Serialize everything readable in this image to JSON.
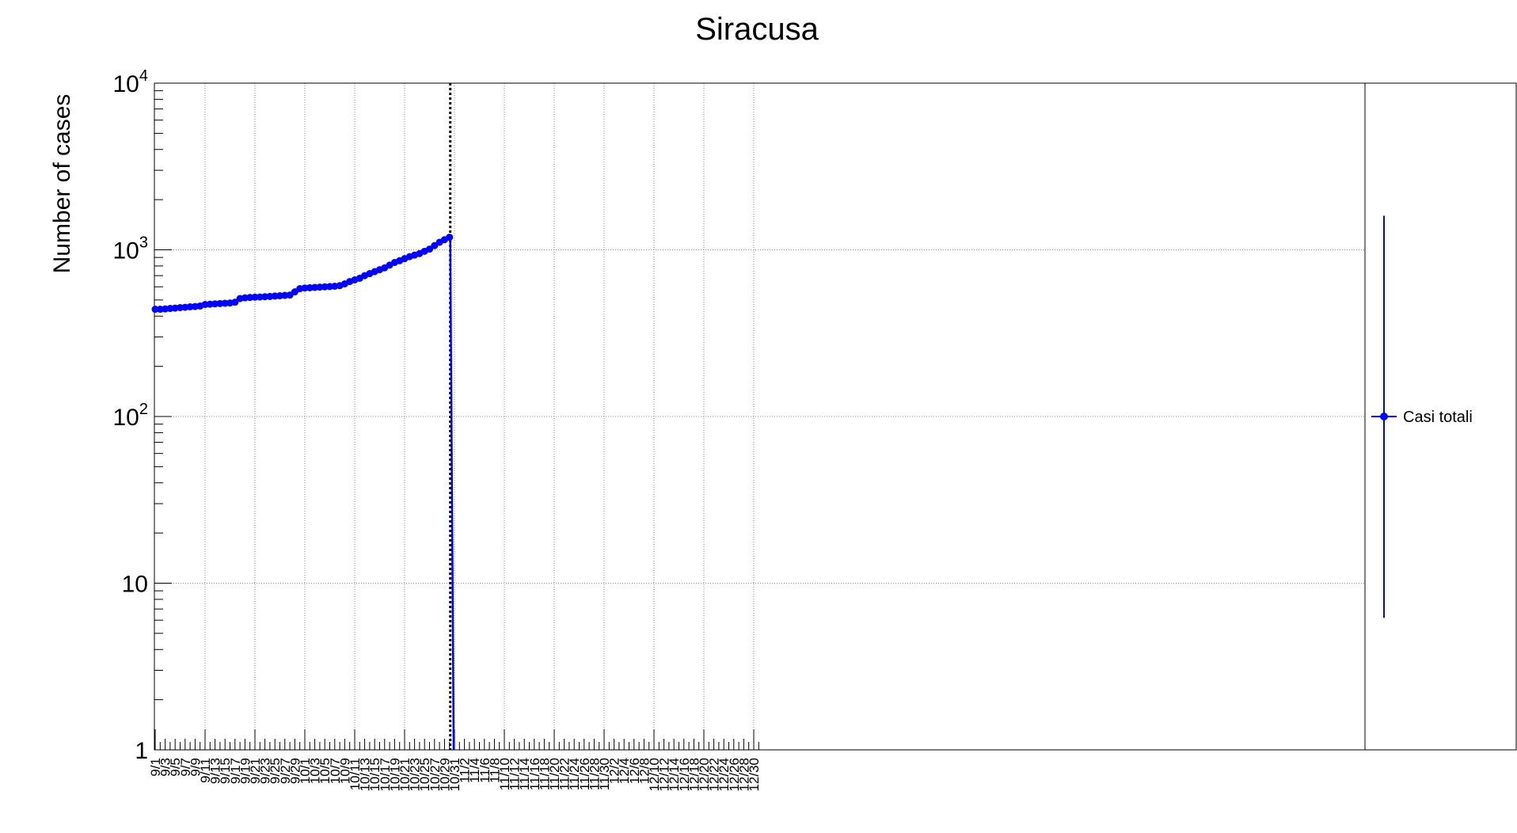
{
  "chart_data": {
    "type": "line",
    "title": "Siracusa",
    "xlabel": "",
    "ylabel": "Number of cases",
    "y_scale": "log",
    "ylim": [
      1,
      10000
    ],
    "x_day_range": [
      "9/1",
      "12/31"
    ],
    "y_ticks": [
      {
        "value": 1,
        "label": "1"
      },
      {
        "value": 10,
        "label": "10"
      },
      {
        "value": 100,
        "base": "10",
        "exp": "2"
      },
      {
        "value": 1000,
        "base": "10",
        "exp": "3"
      },
      {
        "value": 10000,
        "base": "10",
        "exp": "4"
      }
    ],
    "x_tick_labels": [
      "9/1",
      "9/3",
      "9/5",
      "9/7",
      "9/9",
      "9/11",
      "9/13",
      "9/15",
      "9/17",
      "9/19",
      "9/21",
      "9/23",
      "9/25",
      "9/27",
      "9/29",
      "10/1",
      "10/3",
      "10/5",
      "10/7",
      "10/9",
      "10/11",
      "10/13",
      "10/15",
      "10/17",
      "10/19",
      "10/21",
      "10/23",
      "10/25",
      "10/27",
      "10/29",
      "10/31",
      "11/2",
      "11/4",
      "11/6",
      "11/8",
      "11/10",
      "11/12",
      "11/14",
      "11/16",
      "11/18",
      "11/20",
      "11/22",
      "11/24",
      "11/26",
      "11/28",
      "11/30",
      "12/2",
      "12/4",
      "12/6",
      "12/8",
      "12/10",
      "12/12",
      "12/14",
      "12/16",
      "12/18",
      "12/20",
      "12/22",
      "12/24",
      "12/26",
      "12/28",
      "12/30"
    ],
    "grid": true,
    "vertical_marker_date": "10/30",
    "legend_position": "right",
    "series": [
      {
        "name": "Casi totali",
        "color": "#0000ff",
        "x": [
          "9/1",
          "9/2",
          "9/3",
          "9/4",
          "9/5",
          "9/6",
          "9/7",
          "9/8",
          "9/9",
          "9/10",
          "9/11",
          "9/12",
          "9/13",
          "9/14",
          "9/15",
          "9/16",
          "9/17",
          "9/18",
          "9/19",
          "9/20",
          "9/21",
          "9/22",
          "9/23",
          "9/24",
          "9/25",
          "9/26",
          "9/27",
          "9/28",
          "9/29",
          "9/30",
          "10/1",
          "10/2",
          "10/3",
          "10/4",
          "10/5",
          "10/6",
          "10/7",
          "10/8",
          "10/9",
          "10/10",
          "10/11",
          "10/12",
          "10/13",
          "10/14",
          "10/15",
          "10/16",
          "10/17",
          "10/18",
          "10/19",
          "10/20",
          "10/21",
          "10/22",
          "10/23",
          "10/24",
          "10/25",
          "10/26",
          "10/27",
          "10/28",
          "10/29",
          "10/30"
        ],
        "values": [
          440,
          440,
          442,
          445,
          447,
          450,
          452,
          455,
          457,
          460,
          470,
          472,
          474,
          476,
          478,
          480,
          485,
          510,
          515,
          518,
          520,
          521,
          523,
          525,
          528,
          530,
          533,
          535,
          560,
          585,
          590,
          592,
          595,
          597,
          600,
          602,
          605,
          610,
          625,
          645,
          660,
          675,
          700,
          720,
          740,
          760,
          780,
          810,
          840,
          860,
          885,
          910,
          930,
          950,
          980,
          1010,
          1060,
          1110,
          1150,
          1190
        ],
        "drop_to": 1,
        "drop_date": "10/31"
      }
    ],
    "legend_error_bar": {
      "low": 6.2,
      "high": 1600
    }
  }
}
